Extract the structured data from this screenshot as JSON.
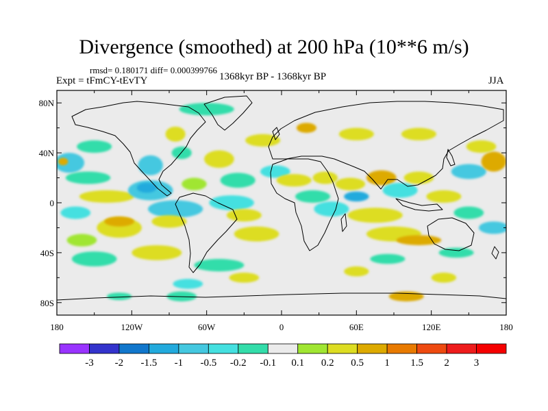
{
  "title": "Divergence (smoothed) at 200 hPa (10**6 m/s)",
  "stats": "rmsd= 0.180171 diff= 0.000399766",
  "experiment": "Expt = tFmCY-tEvTY",
  "period": "1368kyr BP - 1368kyr BP",
  "season": "JJA",
  "chart_data": {
    "type": "heatmap",
    "variable": "Divergence (smoothed) at 200 hPa",
    "units": "10**6 m/s",
    "x_axis": {
      "range": [
        -180,
        180
      ],
      "ticks": [
        -180,
        -120,
        -60,
        0,
        60,
        120,
        180
      ],
      "tick_labels": [
        "180",
        "120W",
        "60W",
        "0",
        "60E",
        "120E",
        "180"
      ]
    },
    "y_axis": {
      "range": [
        -90,
        90
      ],
      "ticks": [
        80,
        40,
        0,
        -40,
        -80
      ],
      "tick_labels": [
        "80N",
        "40N",
        "0",
        "40S",
        "80S"
      ]
    },
    "colorbar": {
      "levels": [
        "-3",
        "-2",
        "-1.5",
        "-1",
        "-0.5",
        "-0.2",
        "-0.1",
        "0.1",
        "0.2",
        "0.5",
        "1",
        "1.5",
        "2",
        "3"
      ],
      "colors": [
        "#9933ff",
        "#3333cc",
        "#1177cc",
        "#22aadd",
        "#44c8e0",
        "#44e0e0",
        "#33ddaa",
        "#ebebeb",
        "#a0e632",
        "#dddd22",
        "#ddaa00",
        "#e87a00",
        "#ee4a10",
        "#ee1c1c",
        "#f50000"
      ]
    },
    "patches": [
      {
        "lon": -170,
        "lat": 32,
        "rx": 12,
        "ry": 8,
        "cat": 4
      },
      {
        "lon": -175,
        "lat": 33,
        "rx": 4,
        "ry": 3,
        "cat": 10
      },
      {
        "lon": -150,
        "lat": 45,
        "rx": 14,
        "ry": 5,
        "cat": 6
      },
      {
        "lon": -155,
        "lat": 20,
        "rx": 18,
        "ry": 5,
        "cat": 6
      },
      {
        "lon": -140,
        "lat": 5,
        "rx": 22,
        "ry": 5,
        "cat": 9
      },
      {
        "lon": -165,
        "lat": -8,
        "rx": 12,
        "ry": 5,
        "cat": 5
      },
      {
        "lon": -130,
        "lat": -20,
        "rx": 18,
        "ry": 8,
        "cat": 9
      },
      {
        "lon": -130,
        "lat": -15,
        "rx": 12,
        "ry": 4,
        "cat": 10
      },
      {
        "lon": -160,
        "lat": -30,
        "rx": 12,
        "ry": 5,
        "cat": 8
      },
      {
        "lon": -150,
        "lat": -45,
        "rx": 18,
        "ry": 6,
        "cat": 6
      },
      {
        "lon": -105,
        "lat": 30,
        "rx": 10,
        "ry": 8,
        "cat": 4
      },
      {
        "lon": -105,
        "lat": 10,
        "rx": 18,
        "ry": 8,
        "cat": 4
      },
      {
        "lon": -108,
        "lat": 12,
        "rx": 8,
        "ry": 4,
        "cat": 3
      },
      {
        "lon": -85,
        "lat": -5,
        "rx": 22,
        "ry": 7,
        "cat": 4
      },
      {
        "lon": -90,
        "lat": -15,
        "rx": 14,
        "ry": 5,
        "cat": 9
      },
      {
        "lon": -100,
        "lat": -40,
        "rx": 20,
        "ry": 6,
        "cat": 9
      },
      {
        "lon": -85,
        "lat": 55,
        "rx": 8,
        "ry": 6,
        "cat": 9
      },
      {
        "lon": -80,
        "lat": 40,
        "rx": 8,
        "ry": 5,
        "cat": 6
      },
      {
        "lon": -50,
        "lat": 35,
        "rx": 12,
        "ry": 7,
        "cat": 9
      },
      {
        "lon": -35,
        "lat": 18,
        "rx": 14,
        "ry": 6,
        "cat": 6
      },
      {
        "lon": -70,
        "lat": 15,
        "rx": 10,
        "ry": 5,
        "cat": 8
      },
      {
        "lon": -40,
        "lat": 0,
        "rx": 18,
        "ry": 6,
        "cat": 5
      },
      {
        "lon": -30,
        "lat": -10,
        "rx": 14,
        "ry": 5,
        "cat": 9
      },
      {
        "lon": -20,
        "lat": -25,
        "rx": 18,
        "ry": 6,
        "cat": 9
      },
      {
        "lon": -50,
        "lat": -50,
        "rx": 20,
        "ry": 5,
        "cat": 6
      },
      {
        "lon": -60,
        "lat": 75,
        "rx": 22,
        "ry": 5,
        "cat": 6
      },
      {
        "lon": -75,
        "lat": -65,
        "rx": 12,
        "ry": 4,
        "cat": 5
      },
      {
        "lon": -30,
        "lat": -60,
        "rx": 12,
        "ry": 4,
        "cat": 9
      },
      {
        "lon": -15,
        "lat": 50,
        "rx": 14,
        "ry": 5,
        "cat": 9
      },
      {
        "lon": -5,
        "lat": 25,
        "rx": 12,
        "ry": 5,
        "cat": 5
      },
      {
        "lon": 10,
        "lat": 18,
        "rx": 14,
        "ry": 5,
        "cat": 9
      },
      {
        "lon": 25,
        "lat": 5,
        "rx": 14,
        "ry": 5,
        "cat": 6
      },
      {
        "lon": 40,
        "lat": -5,
        "rx": 14,
        "ry": 6,
        "cat": 5
      },
      {
        "lon": 35,
        "lat": 20,
        "rx": 10,
        "ry": 5,
        "cat": 9
      },
      {
        "lon": 55,
        "lat": 15,
        "rx": 12,
        "ry": 5,
        "cat": 9
      },
      {
        "lon": 60,
        "lat": 5,
        "rx": 10,
        "ry": 4,
        "cat": 3
      },
      {
        "lon": 75,
        "lat": -10,
        "rx": 22,
        "ry": 6,
        "cat": 9
      },
      {
        "lon": 90,
        "lat": -25,
        "rx": 22,
        "ry": 6,
        "cat": 9
      },
      {
        "lon": 110,
        "lat": -30,
        "rx": 18,
        "ry": 4,
        "cat": 10
      },
      {
        "lon": 85,
        "lat": -45,
        "rx": 14,
        "ry": 4,
        "cat": 6
      },
      {
        "lon": 80,
        "lat": 20,
        "rx": 12,
        "ry": 6,
        "cat": 10
      },
      {
        "lon": 95,
        "lat": 10,
        "rx": 14,
        "ry": 6,
        "cat": 5
      },
      {
        "lon": 110,
        "lat": 20,
        "rx": 12,
        "ry": 5,
        "cat": 9
      },
      {
        "lon": 130,
        "lat": 5,
        "rx": 14,
        "ry": 5,
        "cat": 9
      },
      {
        "lon": 150,
        "lat": 25,
        "rx": 14,
        "ry": 6,
        "cat": 4
      },
      {
        "lon": 170,
        "lat": 33,
        "rx": 10,
        "ry": 8,
        "cat": 10
      },
      {
        "lon": 160,
        "lat": 45,
        "rx": 12,
        "ry": 5,
        "cat": 9
      },
      {
        "lon": 150,
        "lat": -8,
        "rx": 12,
        "ry": 5,
        "cat": 6
      },
      {
        "lon": 170,
        "lat": -20,
        "rx": 12,
        "ry": 5,
        "cat": 4
      },
      {
        "lon": 140,
        "lat": -40,
        "rx": 14,
        "ry": 4,
        "cat": 6
      },
      {
        "lon": 110,
        "lat": 55,
        "rx": 14,
        "ry": 5,
        "cat": 9
      },
      {
        "lon": 60,
        "lat": 55,
        "rx": 14,
        "ry": 5,
        "cat": 9
      },
      {
        "lon": 20,
        "lat": 60,
        "rx": 8,
        "ry": 4,
        "cat": 10
      },
      {
        "lon": 100,
        "lat": -75,
        "rx": 14,
        "ry": 4,
        "cat": 10
      },
      {
        "lon": -130,
        "lat": -75,
        "rx": 10,
        "ry": 3,
        "cat": 6
      },
      {
        "lon": -80,
        "lat": -75,
        "rx": 12,
        "ry": 4,
        "cat": 6
      },
      {
        "lon": 130,
        "lat": -60,
        "rx": 10,
        "ry": 4,
        "cat": 9
      },
      {
        "lon": 60,
        "lat": -55,
        "rx": 10,
        "ry": 4,
        "cat": 9
      }
    ]
  }
}
